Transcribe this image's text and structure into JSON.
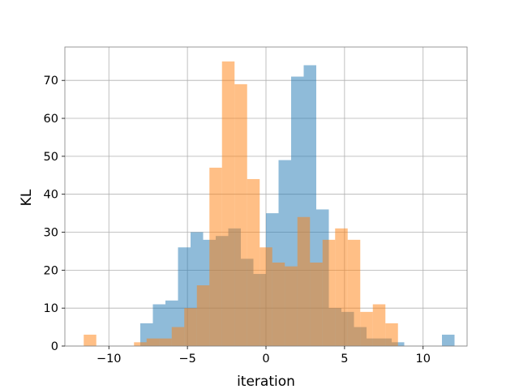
{
  "chart_data": {
    "type": "bar",
    "xlabel": "iteration",
    "ylabel": "KL",
    "xlim": [
      -12.8,
      12.8
    ],
    "ylim": [
      0,
      78.8
    ],
    "xticks": [
      -10,
      -5,
      0,
      5,
      10
    ],
    "yticks": [
      0,
      10,
      20,
      30,
      40,
      50,
      60,
      70
    ],
    "xtick_labels": [
      "−10",
      "−5",
      "0",
      "5",
      "10"
    ],
    "ytick_labels": [
      "0",
      "10",
      "20",
      "30",
      "40",
      "50",
      "60",
      "70"
    ],
    "grid": true,
    "series": [
      {
        "color": "#1f77b4",
        "alpha": 0.5,
        "bins": [
          {
            "x0": -8.0,
            "x1": -7.2,
            "count": 6
          },
          {
            "x0": -7.2,
            "x1": -6.4,
            "count": 11
          },
          {
            "x0": -6.4,
            "x1": -5.6,
            "count": 12
          },
          {
            "x0": -5.6,
            "x1": -4.8,
            "count": 26
          },
          {
            "x0": -4.8,
            "x1": -4.0,
            "count": 30
          },
          {
            "x0": -4.0,
            "x1": -3.2,
            "count": 28
          },
          {
            "x0": -3.2,
            "x1": -2.4,
            "count": 29
          },
          {
            "x0": -2.4,
            "x1": -1.6,
            "count": 31
          },
          {
            "x0": -1.6,
            "x1": -0.8,
            "count": 23
          },
          {
            "x0": -0.8,
            "x1": 0.0,
            "count": 19
          },
          {
            "x0": 0.0,
            "x1": 0.8,
            "count": 35
          },
          {
            "x0": 0.8,
            "x1": 1.6,
            "count": 49
          },
          {
            "x0": 1.6,
            "x1": 2.4,
            "count": 71
          },
          {
            "x0": 2.4,
            "x1": 3.2,
            "count": 74
          },
          {
            "x0": 3.2,
            "x1": 4.0,
            "count": 36
          },
          {
            "x0": 4.0,
            "x1": 4.8,
            "count": 10
          },
          {
            "x0": 4.8,
            "x1": 5.6,
            "count": 9
          },
          {
            "x0": 5.6,
            "x1": 6.4,
            "count": 5
          },
          {
            "x0": 6.4,
            "x1": 7.2,
            "count": 2
          },
          {
            "x0": 7.2,
            "x1": 8.0,
            "count": 2
          },
          {
            "x0": 8.0,
            "x1": 8.8,
            "count": 1
          },
          {
            "x0": 8.8,
            "x1": 9.6,
            "count": 0
          },
          {
            "x0": 9.6,
            "x1": 10.4,
            "count": 0
          },
          {
            "x0": 10.4,
            "x1": 11.2,
            "count": 0
          },
          {
            "x0": 11.2,
            "x1": 12.0,
            "count": 3
          }
        ]
      },
      {
        "color": "#ff7f0e",
        "alpha": 0.5,
        "bins": [
          {
            "x0": -11.6,
            "x1": -10.8,
            "count": 3
          },
          {
            "x0": -10.8,
            "x1": -10.0,
            "count": 0
          },
          {
            "x0": -10.0,
            "x1": -9.2,
            "count": 0
          },
          {
            "x0": -9.2,
            "x1": -8.4,
            "count": 0
          },
          {
            "x0": -8.4,
            "x1": -7.6,
            "count": 1
          },
          {
            "x0": -7.6,
            "x1": -6.8,
            "count": 2
          },
          {
            "x0": -6.8,
            "x1": -6.0,
            "count": 2
          },
          {
            "x0": -6.0,
            "x1": -5.2,
            "count": 5
          },
          {
            "x0": -5.2,
            "x1": -4.4,
            "count": 10
          },
          {
            "x0": -4.4,
            "x1": -3.6,
            "count": 16
          },
          {
            "x0": -3.6,
            "x1": -2.8,
            "count": 47
          },
          {
            "x0": -2.8,
            "x1": -2.0,
            "count": 75
          },
          {
            "x0": -2.0,
            "x1": -1.2,
            "count": 69
          },
          {
            "x0": -1.2,
            "x1": -0.4,
            "count": 44
          },
          {
            "x0": -0.4,
            "x1": 0.4,
            "count": 26
          },
          {
            "x0": 0.4,
            "x1": 1.2,
            "count": 22
          },
          {
            "x0": 1.2,
            "x1": 2.0,
            "count": 21
          },
          {
            "x0": 2.0,
            "x1": 2.8,
            "count": 34
          },
          {
            "x0": 2.8,
            "x1": 3.6,
            "count": 22
          },
          {
            "x0": 3.6,
            "x1": 4.4,
            "count": 28
          },
          {
            "x0": 4.4,
            "x1": 5.2,
            "count": 31
          },
          {
            "x0": 5.2,
            "x1": 6.0,
            "count": 28
          },
          {
            "x0": 6.0,
            "x1": 6.8,
            "count": 9
          },
          {
            "x0": 6.8,
            "x1": 7.6,
            "count": 11
          },
          {
            "x0": 7.6,
            "x1": 8.4,
            "count": 6
          }
        ]
      }
    ]
  }
}
